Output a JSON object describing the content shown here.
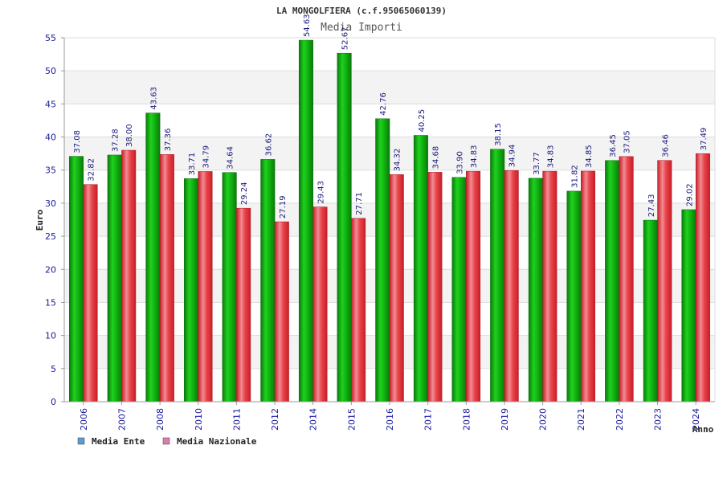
{
  "chart_data": {
    "type": "bar",
    "title": "LA MONGOLFIERA (c.f.95065060139)",
    "subtitle": "Media Importi",
    "xlabel": "Anno",
    "ylabel": "Euro",
    "ylim": [
      0,
      55
    ],
    "yticks": [
      0,
      5,
      10,
      15,
      20,
      25,
      30,
      35,
      40,
      45,
      50,
      55
    ],
    "grid": true,
    "legend_position": "bottom-left",
    "categories": [
      "2006",
      "2007",
      "2008",
      "2010",
      "2011",
      "2012",
      "2014",
      "2015",
      "2016",
      "2017",
      "2018",
      "2019",
      "2020",
      "2021",
      "2022",
      "2023",
      "2024"
    ],
    "series": [
      {
        "name": "Media Ente",
        "legend_color": "#5b9bd5",
        "bar_color": "#14b814",
        "values": [
          37.08,
          37.28,
          43.63,
          33.71,
          34.64,
          36.62,
          54.63,
          52.67,
          42.76,
          40.25,
          33.9,
          38.15,
          33.77,
          31.82,
          36.45,
          27.43,
          29.02
        ],
        "labels": [
          "37.08",
          "37.28",
          "43.63",
          "33.71",
          "34.64",
          "36.62",
          "54.63",
          "52.67",
          "42.76",
          "40.25",
          "33.90",
          "38.15",
          "33.77",
          "31.82",
          "36.45",
          "27.43",
          "29.02"
        ]
      },
      {
        "name": "Media Nazionale",
        "legend_color": "#d77fae",
        "bar_color": "#e8303a",
        "values": [
          32.82,
          38.0,
          37.36,
          34.79,
          29.24,
          27.19,
          29.43,
          27.71,
          34.32,
          34.68,
          34.83,
          34.94,
          34.83,
          34.85,
          37.05,
          36.46,
          37.49
        ],
        "labels": [
          "32.82",
          "38.00",
          "37.36",
          "34.79",
          "29.24",
          "27.19",
          "29.43",
          "27.71",
          "34.32",
          "34.68",
          "34.83",
          "34.94",
          "34.83",
          "34.85",
          "37.05",
          "36.46",
          "37.49"
        ]
      }
    ]
  }
}
